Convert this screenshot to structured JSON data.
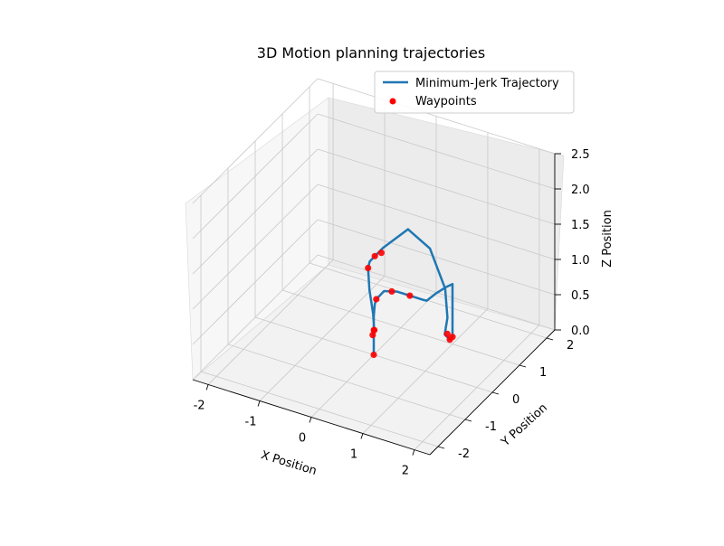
{
  "chart_data": {
    "type": "line3d",
    "title": "3D Motion planning trajectories",
    "xlabel": "X Position",
    "ylabel": "Y Position",
    "zlabel": "Z Position",
    "xlim": [
      -2.3,
      2.3
    ],
    "ylim": [
      -2.3,
      2.3
    ],
    "zlim": [
      0,
      2.5
    ],
    "xticks": [
      "-2",
      "-1",
      "0",
      "1",
      "2"
    ],
    "yticks": [
      "-2",
      "-1",
      "0",
      "1",
      "2"
    ],
    "zticks": [
      "0.0",
      "0.5",
      "1.0",
      "1.5",
      "2.0",
      "2.5"
    ],
    "grid": true,
    "legend_position": "top-right",
    "legend": {
      "line_label": "Minimum-Jerk Trajectory",
      "marker_label": "Waypoints"
    },
    "colors": {
      "trajectory": "#1f77b4",
      "waypoints": "#ff0000",
      "pane": "#f2f2f2",
      "grid": "#c8c8c8"
    },
    "series": [
      {
        "name": "Minimum-Jerk Trajectory",
        "style": "line",
        "points": [
          {
            "x": 0.0,
            "y": 0.0,
            "z": 0.0
          },
          {
            "x": 0.0,
            "y": 0.0,
            "z": 0.25
          },
          {
            "x": 0.0,
            "y": 0.0,
            "z": 0.55
          },
          {
            "x": 0.02,
            "y": 0.0,
            "z": 0.72
          },
          {
            "x": 0.05,
            "y": 0.0,
            "z": 0.8
          },
          {
            "x": 0.2,
            "y": 0.0,
            "z": 0.95
          },
          {
            "x": 0.45,
            "y": 0.0,
            "z": 1.0
          },
          {
            "x": 0.7,
            "y": 0.0,
            "z": 1.0
          },
          {
            "x": 0.95,
            "y": 0.0,
            "z": 1.0
          },
          {
            "x": 1.0,
            "y": 0.05,
            "z": 0.98
          },
          {
            "x": 1.0,
            "y": 0.4,
            "z": 0.95
          },
          {
            "x": 1.0,
            "y": 0.75,
            "z": 0.9
          },
          {
            "x": 1.0,
            "y": 1.0,
            "z": 0.85
          },
          {
            "x": 1.0,
            "y": 1.0,
            "z": 0.5
          },
          {
            "x": 1.0,
            "y": 1.0,
            "z": 0.1
          },
          {
            "x": 0.95,
            "y": 1.0,
            "z": 0.05
          },
          {
            "x": 0.85,
            "y": 1.0,
            "z": 0.1
          },
          {
            "x": 0.85,
            "y": 1.1,
            "z": 0.3
          },
          {
            "x": 0.7,
            "y": 1.3,
            "z": 0.6
          },
          {
            "x": 0.3,
            "y": 1.5,
            "z": 1.0
          },
          {
            "x": -0.1,
            "y": 1.45,
            "z": 1.2
          },
          {
            "x": -0.4,
            "y": 1.1,
            "z": 1.0
          },
          {
            "x": -0.5,
            "y": 0.8,
            "z": 0.9
          },
          {
            "x": -0.48,
            "y": 0.7,
            "z": 0.85
          },
          {
            "x": -0.4,
            "y": 0.6,
            "z": 0.6
          },
          {
            "x": -0.25,
            "y": 0.45,
            "z": 0.35
          },
          {
            "x": -0.15,
            "y": 0.3,
            "z": 0.2
          },
          {
            "x": -0.1,
            "y": 0.15,
            "z": 0.2
          },
          {
            "x": -0.05,
            "y": 0.1,
            "z": 0.3
          },
          {
            "x": 0.0,
            "y": 0.0,
            "z": 0.3
          }
        ]
      },
      {
        "name": "Waypoints",
        "style": "scatter",
        "points": [
          {
            "x": 0.0,
            "y": 0.0,
            "z": 0.0
          },
          {
            "x": 0.05,
            "y": 0.0,
            "z": 0.8
          },
          {
            "x": 0.35,
            "y": 0.0,
            "z": 0.98
          },
          {
            "x": 0.7,
            "y": 0.0,
            "z": 1.0
          },
          {
            "x": 0.95,
            "y": 1.0,
            "z": 0.05
          },
          {
            "x": 0.9,
            "y": 1.0,
            "z": 0.12
          },
          {
            "x": 1.0,
            "y": 1.0,
            "z": 0.1
          },
          {
            "x": -0.48,
            "y": 0.7,
            "z": 0.85
          },
          {
            "x": -0.4,
            "y": 0.8,
            "z": 1.0
          },
          {
            "x": -0.3,
            "y": 0.85,
            "z": 1.05
          },
          {
            "x": -0.15,
            "y": 0.3,
            "z": 0.2
          },
          {
            "x": -0.1,
            "y": 0.15,
            "z": 0.2
          },
          {
            "x": -0.05,
            "y": 0.1,
            "z": 0.3
          }
        ]
      }
    ]
  }
}
